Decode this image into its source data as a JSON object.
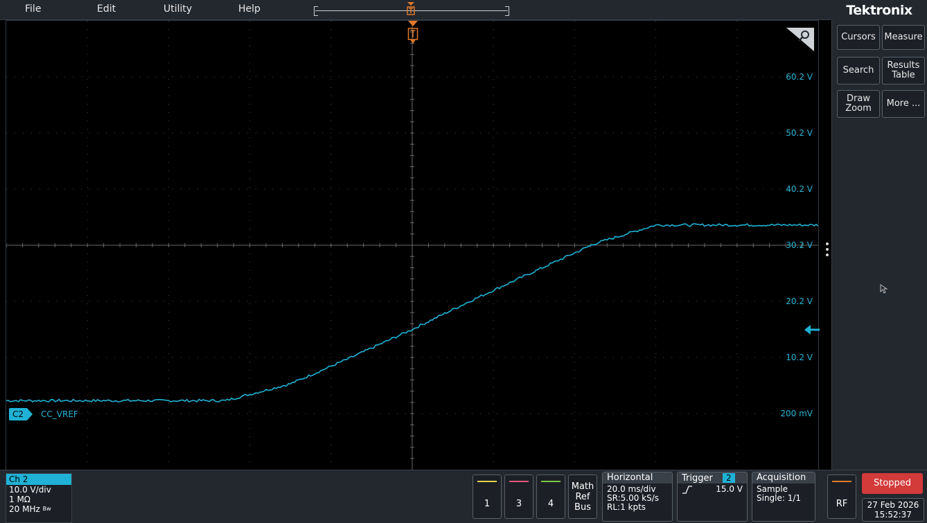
{
  "menu": {
    "file": "File",
    "edit": "Edit",
    "utility": "Utility",
    "help": "Help"
  },
  "brand": "Tektronix",
  "colors": {
    "channel2": "#1fb2d6",
    "channel3": "#e05b7d",
    "channel4": "#7ac943",
    "channel1": "#e5d24b",
    "trigger": "#e07a2a",
    "stopped": "#d33a3a",
    "rf": "#e07a2a"
  },
  "icons": {
    "zoom": "magnifier-icon",
    "trigger": "trigger-flag-icon",
    "level": "trigger-level-arrow-icon",
    "handle": "vertical-ellipsis-icon"
  },
  "waveform": {
    "channel_badge": "C2",
    "channel_name": "CC_VREF",
    "trigger_flag_label": "T",
    "voltage_labels": [
      "60.2 V",
      "50.2 V",
      "40.2 V",
      "30.2 V",
      "20.2 V",
      "10.2 V",
      "200 mV"
    ]
  },
  "chart_data": {
    "type": "line",
    "title": "",
    "xlabel": "",
    "ylabel": "",
    "grid": true,
    "x_units": "ms",
    "x_range": [
      -100,
      100
    ],
    "ylim": [
      -9.8,
      70.2
    ],
    "series": [
      {
        "name": "CC_VREF",
        "x": [
          -100,
          -60,
          -46,
          -30,
          -15,
          0,
          15,
          30,
          45,
          60,
          80,
          100
        ],
        "y": [
          2.5,
          2.5,
          2.5,
          5.5,
          10.2,
          15.2,
          20.5,
          25.5,
          30.5,
          33.8,
          33.8,
          33.8
        ]
      }
    ]
  },
  "side_buttons": {
    "cursors": "Cursors",
    "measure": "Measure",
    "search": "Search",
    "results_line1": "Results",
    "results_line2": "Table",
    "drawzoom_line1": "Draw",
    "drawzoom_line2": "Zoom",
    "more": "More ..."
  },
  "ch2": {
    "title": "Ch 2",
    "scale": "10.0 V/div",
    "impedance": "1 MΩ",
    "bandwidth": "20 MHz",
    "bw_mark": "Bw"
  },
  "channels": {
    "c1": "1",
    "c3": "3",
    "c4": "4"
  },
  "mathrefbus": {
    "math": "Math",
    "ref": "Ref",
    "bus": "Bus"
  },
  "horizontal": {
    "title": "Horizontal",
    "scale": "20.0 ms/div",
    "sample_rate": "SR:5.00 kS/s",
    "record_length": "RL:1 kpts"
  },
  "trigger": {
    "title": "Trigger",
    "source": "2",
    "level": "15.0 V"
  },
  "acquisition": {
    "title": "Acquisition",
    "mode": "Sample",
    "single": "Single: 1/1"
  },
  "rf": "RF",
  "status": {
    "stopped": "Stopped",
    "date": "27 Feb 2026",
    "time": "15:52:37"
  }
}
